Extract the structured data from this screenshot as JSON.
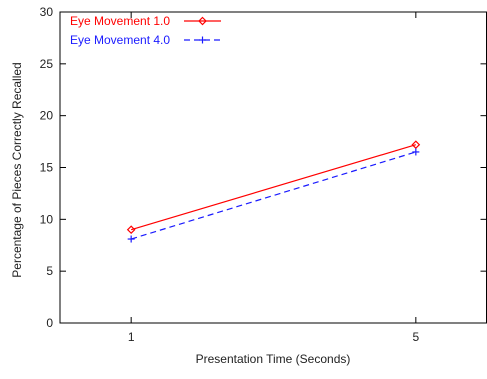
{
  "chart_data": {
    "type": "line",
    "title": "",
    "xlabel": "Presentation Time (Seconds)",
    "ylabel": "Percentage of Pieces Correctly Recalled",
    "x": [
      1,
      5
    ],
    "x_tick_labels": [
      "1",
      "5"
    ],
    "xlim": [
      0,
      6
    ],
    "ylim": [
      0,
      30
    ],
    "y_ticks": [
      0,
      5,
      10,
      15,
      20,
      25,
      30
    ],
    "y_tick_labels": [
      "0",
      "5",
      "10",
      "15",
      "20",
      "25",
      "30"
    ],
    "grid": false,
    "legend_position": "top-left",
    "series": [
      {
        "name": "Eye Movement 1.0",
        "values": [
          9.0,
          17.2
        ],
        "color": "#ff0000",
        "line_style": "solid",
        "marker": "diamond"
      },
      {
        "name": "Eye Movement 4.0",
        "values": [
          8.1,
          16.5
        ],
        "color": "#1a1aff",
        "line_style": "dashed",
        "marker": "plus"
      }
    ]
  }
}
